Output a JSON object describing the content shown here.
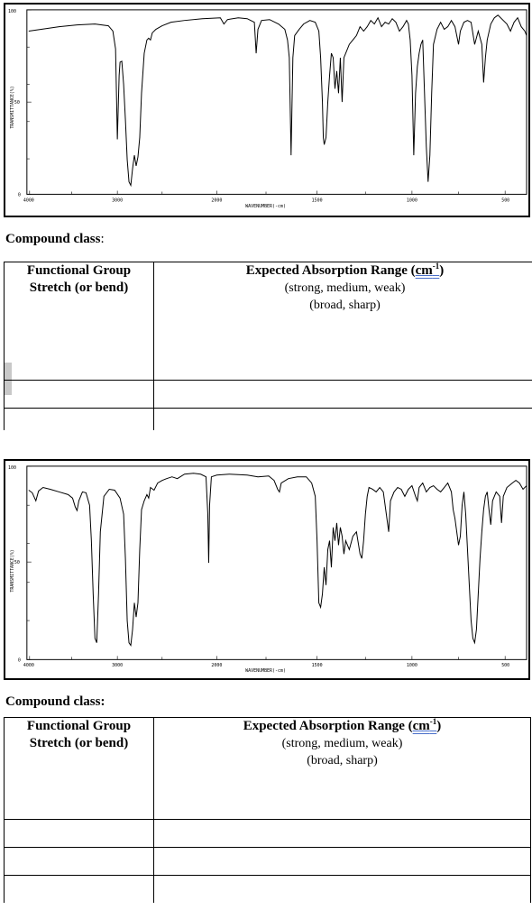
{
  "spectrum_1": {
    "y_ticks": [
      "100",
      "50",
      "0"
    ],
    "x_ticks": [
      "4000",
      "3000",
      "2000",
      "1500",
      "1000",
      "500"
    ],
    "xlabel": "WAVENUMBER(-cm)",
    "ylabel": "TRANSMITTANCE(%)"
  },
  "spectrum_2": {
    "y_ticks": [
      "100",
      "50",
      "0"
    ],
    "x_ticks": [
      "4000",
      "3000",
      "2000",
      "1500",
      "1000",
      "500"
    ],
    "xlabel": "WAVENUMBER(-cm)",
    "ylabel": "TRANSMITTANCE(%)"
  },
  "section_1": {
    "compound_label": "Compound class",
    "colon": ":",
    "col1_line1": "Functional Group",
    "col1_line2": "Stretch (or bend)",
    "col2_line1_pre": "Expected Absorption Range (",
    "col2_cm": "cm",
    "col2_sup": "-1",
    "col2_line1_post": ")",
    "col2_line2": "(strong, medium, weak)",
    "col2_line3": "(broad, sharp)"
  },
  "section_2": {
    "compound_label": "Compound class:",
    "col1_line1": "Functional Group",
    "col1_line2": "Stretch (or bend)",
    "col2_line1_pre": "Expected Absorption Range (",
    "col2_cm": "cm",
    "col2_sup": "-1",
    "col2_line1_post": ")",
    "col2_line2": "(strong, medium, weak)",
    "col2_line3": "(broad, sharp)"
  }
}
